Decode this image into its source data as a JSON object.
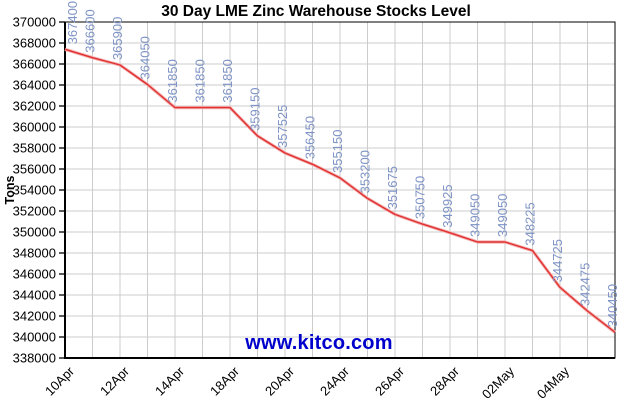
{
  "chart_data": {
    "type": "line",
    "title": "30 Day LME Zinc Warehouse Stocks Level",
    "ylabel": "Tons",
    "watermark": "www.kitco.com",
    "series_name": "LME Zinc Warehouse Stocks",
    "values": [
      367400,
      366600,
      365900,
      364050,
      361850,
      361850,
      361850,
      359150,
      357525,
      356450,
      355150,
      353200,
      351675,
      350750,
      349925,
      349050,
      349050,
      348225,
      344725,
      342475,
      340450
    ],
    "point_labels": [
      "367400",
      "366600",
      "365900",
      "364050",
      "361850",
      "361850",
      "361850",
      "359150",
      "357525",
      "356450",
      "355150",
      "353200",
      "351675",
      "350750",
      "349925",
      "349050",
      "349050",
      "348225",
      "344725",
      "342475",
      "340450"
    ],
    "x_ticks": [
      {
        "index": 0,
        "label": "10Apr"
      },
      {
        "index": 2,
        "label": "12Apr"
      },
      {
        "index": 4,
        "label": "14Apr"
      },
      {
        "index": 6,
        "label": "18Apr"
      },
      {
        "index": 8,
        "label": "20Apr"
      },
      {
        "index": 10,
        "label": "24Apr"
      },
      {
        "index": 12,
        "label": "26Apr"
      },
      {
        "index": 14,
        "label": "28Apr"
      },
      {
        "index": 16,
        "label": "02May"
      },
      {
        "index": 18,
        "label": "04May"
      }
    ],
    "ylim": [
      338000,
      370000
    ],
    "ytick_step": 2000,
    "grid": true,
    "legend": "none",
    "colors": {
      "line": "#e03030",
      "line_halo": "#f4aeae",
      "point_label": "#7e93c6",
      "grid": "#cccccc",
      "axis": "#000000",
      "watermark": "#0000cc",
      "background": "#ffffff"
    }
  }
}
